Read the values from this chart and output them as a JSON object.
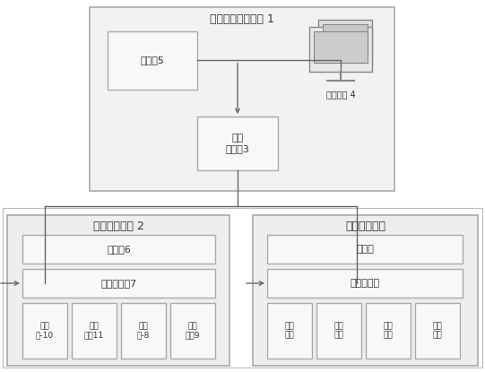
{
  "title_top": "冗余监控管理单元 1",
  "title_left": "冗余显示单元 2",
  "title_right": "冗余显示单元",
  "label_remote": "遥控器5",
  "label_monitor": "监控\n管理器3",
  "label_control": "控制终端 4",
  "label_display_left": "显示器6",
  "label_mgmt_left": "冗余管理板7",
  "label_display_right": "显示器",
  "label_mgmt_right": "冗余管理板",
  "labels_bottom_left": [
    "信号\n板-10",
    "信号\n板二11",
    "电源\n板-8",
    "电源\n板二9"
  ],
  "labels_bottom_right": [
    "信号\n板一",
    "信号\n板二",
    "电源\n板一",
    "电源\n板二"
  ],
  "bg_color": "#ffffff",
  "box_border_color": "#aaaaaa",
  "inner_fill": "#f8f8f8",
  "outer_fill_top": "#f0f0f0",
  "outer_fill_bottom": "#eeeeee",
  "font_color": "#333333",
  "line_color": "#666666",
  "font_size_title": 9,
  "font_size_label": 8,
  "font_size_small": 6.5
}
